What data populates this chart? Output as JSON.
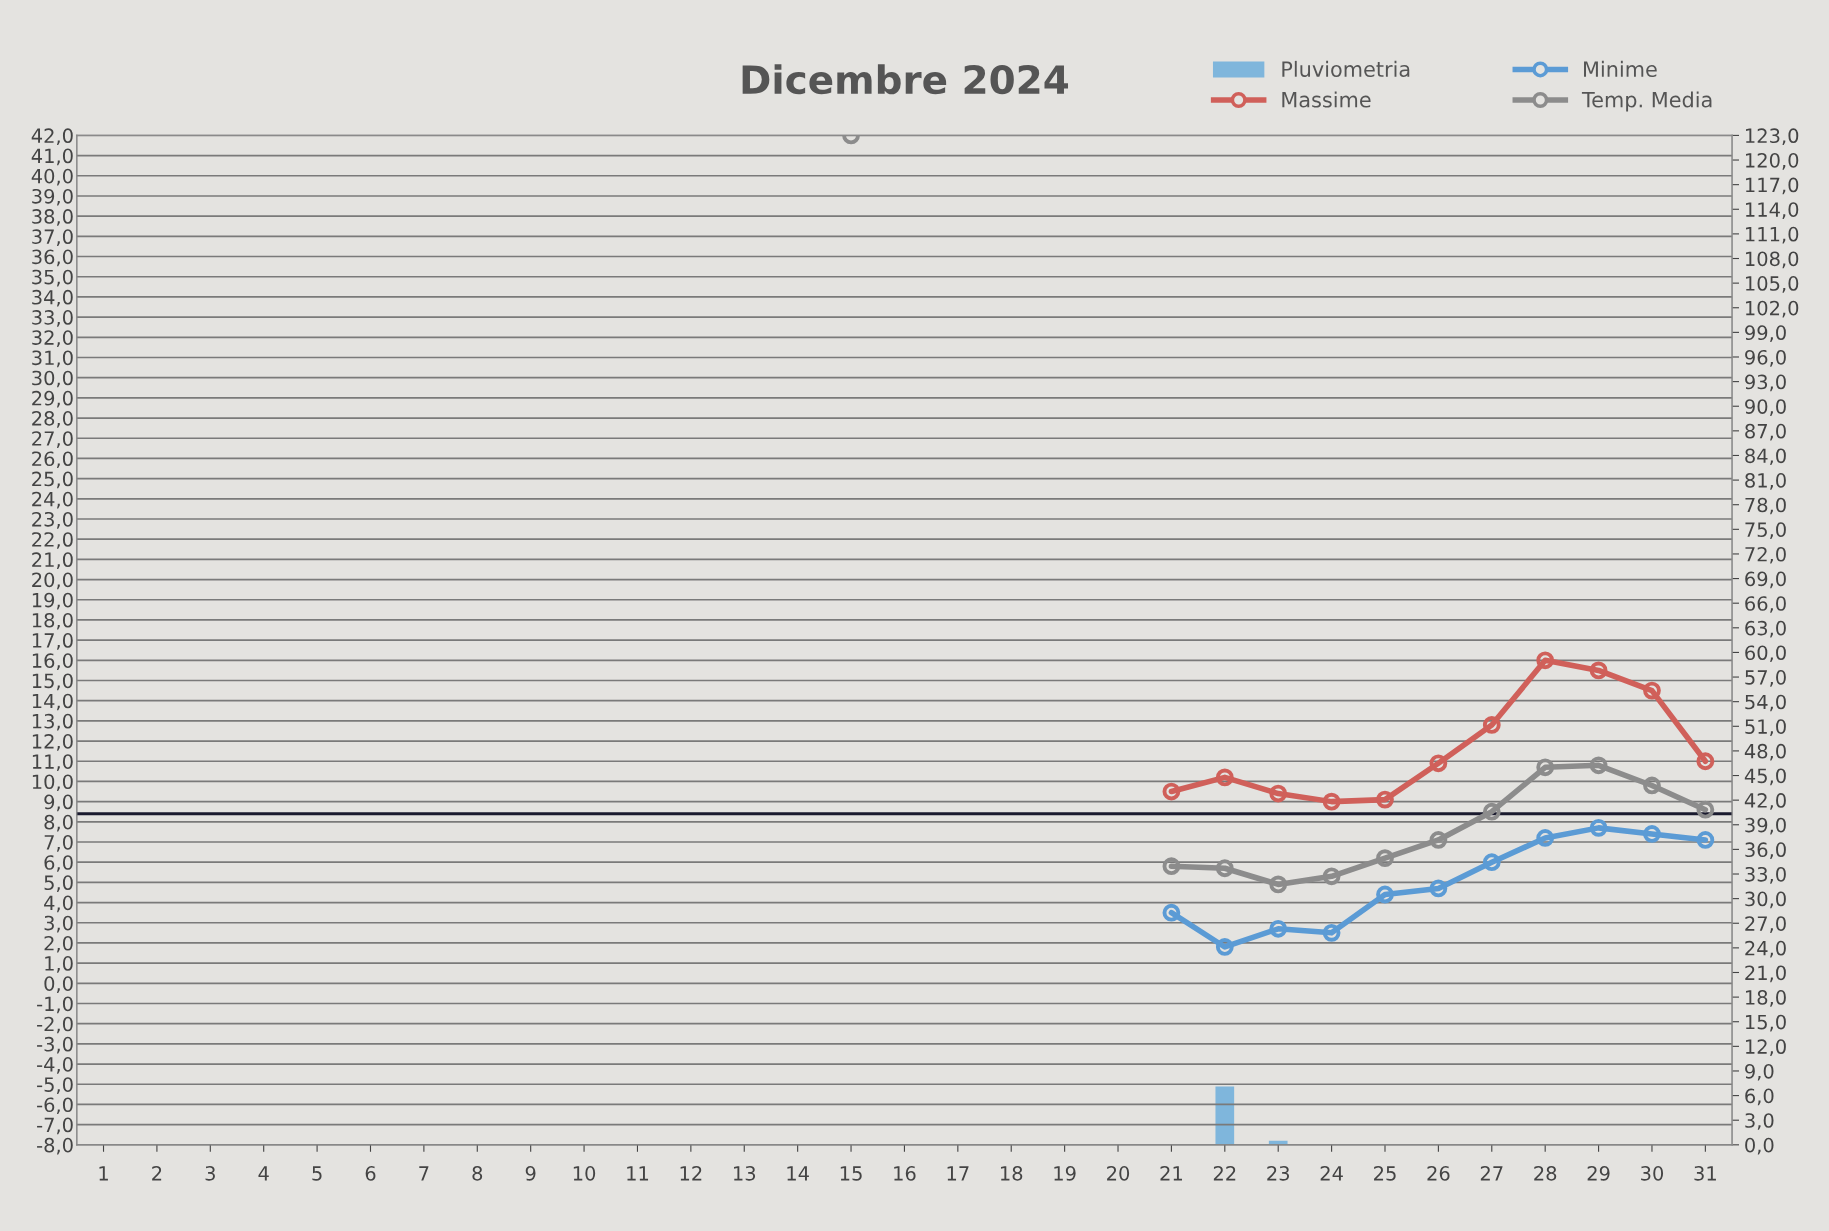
{
  "chart_data": {
    "type": "line",
    "title": "Dicembre 2024",
    "categories": [
      "1",
      "2",
      "3",
      "4",
      "5",
      "6",
      "7",
      "8",
      "9",
      "10",
      "11",
      "12",
      "13",
      "14",
      "15",
      "16",
      "17",
      "18",
      "19",
      "20",
      "21",
      "22",
      "23",
      "24",
      "25",
      "26",
      "27",
      "28",
      "29",
      "30",
      "31"
    ],
    "series": [
      {
        "name": "Pluviometria",
        "type": "bar",
        "axis": "y2",
        "color": "#7fb6dc",
        "values": [
          null,
          null,
          null,
          null,
          null,
          null,
          null,
          null,
          null,
          null,
          null,
          null,
          null,
          null,
          null,
          null,
          null,
          null,
          null,
          null,
          null,
          7.1,
          0.5,
          null,
          null,
          null,
          null,
          null,
          null,
          null,
          null
        ]
      },
      {
        "name": "Massime",
        "color": "#d0605a",
        "values": [
          null,
          null,
          null,
          null,
          null,
          null,
          null,
          null,
          null,
          null,
          null,
          null,
          null,
          null,
          null,
          null,
          null,
          null,
          null,
          null,
          9.5,
          10.2,
          9.4,
          9.0,
          9.1,
          10.9,
          12.8,
          16.0,
          15.5,
          14.5,
          11.0
        ]
      },
      {
        "name": "Minime",
        "color": "#5b9bd5",
        "values": [
          null,
          null,
          null,
          null,
          null,
          null,
          null,
          null,
          null,
          null,
          null,
          null,
          null,
          null,
          null,
          null,
          null,
          null,
          null,
          null,
          3.5,
          1.8,
          2.7,
          2.5,
          4.4,
          4.7,
          6.0,
          7.2,
          7.7,
          7.4,
          7.1
        ]
      },
      {
        "name": "Temp. Media",
        "color": "#8c8c8c",
        "values": [
          null,
          null,
          null,
          null,
          null,
          null,
          null,
          null,
          null,
          null,
          null,
          null,
          null,
          null,
          42.0,
          null,
          null,
          null,
          null,
          null,
          5.8,
          5.7,
          4.9,
          5.3,
          6.2,
          7.1,
          8.5,
          10.7,
          10.8,
          9.8,
          8.6
        ]
      }
    ],
    "ylim": [
      -8,
      42
    ],
    "yticks": [
      {
        "value": -8,
        "label": "-8,0"
      },
      {
        "value": -7,
        "label": "-7,0"
      },
      {
        "value": -6,
        "label": "-6,0"
      },
      {
        "value": -5,
        "label": "-5,0"
      },
      {
        "value": -4,
        "label": "-4,0"
      },
      {
        "value": -3,
        "label": "-3,0"
      },
      {
        "value": -2,
        "label": "-2,0"
      },
      {
        "value": -1,
        "label": "-1,0"
      },
      {
        "value": 0,
        "label": "0,0"
      },
      {
        "value": 1,
        "label": "1,0"
      },
      {
        "value": 2,
        "label": "2,0"
      },
      {
        "value": 3,
        "label": "3,0"
      },
      {
        "value": 4,
        "label": "4,0"
      },
      {
        "value": 5,
        "label": "5,0"
      },
      {
        "value": 6,
        "label": "6,0"
      },
      {
        "value": 7,
        "label": "7,0"
      },
      {
        "value": 8,
        "label": "8,0"
      },
      {
        "value": 9,
        "label": "9,0"
      },
      {
        "value": 10,
        "label": "10,0"
      },
      {
        "value": 11,
        "label": "11,0"
      },
      {
        "value": 12,
        "label": "12,0"
      },
      {
        "value": 13,
        "label": "13,0"
      },
      {
        "value": 14,
        "label": "14,0"
      },
      {
        "value": 15,
        "label": "15,0"
      },
      {
        "value": 16,
        "label": "16,0"
      },
      {
        "value": 17,
        "label": "17,0"
      },
      {
        "value": 18,
        "label": "18,0"
      },
      {
        "value": 19,
        "label": "19,0"
      },
      {
        "value": 20,
        "label": "20,0"
      },
      {
        "value": 21,
        "label": "21,0"
      },
      {
        "value": 22,
        "label": "22,0"
      },
      {
        "value": 23,
        "label": "23,0"
      },
      {
        "value": 24,
        "label": "24,0"
      },
      {
        "value": 25,
        "label": "25,0"
      },
      {
        "value": 26,
        "label": "26,0"
      },
      {
        "value": 27,
        "label": "27,0"
      },
      {
        "value": 28,
        "label": "28,0"
      },
      {
        "value": 29,
        "label": "29,0"
      },
      {
        "value": 30,
        "label": "30,0"
      },
      {
        "value": 31,
        "label": "31,0"
      },
      {
        "value": 32,
        "label": "32,0"
      },
      {
        "value": 33,
        "label": "33,0"
      },
      {
        "value": 34,
        "label": "34,0"
      },
      {
        "value": 35,
        "label": "35,0"
      },
      {
        "value": 36,
        "label": "36,0"
      },
      {
        "value": 37,
        "label": "37,0"
      },
      {
        "value": 38,
        "label": "38,0"
      },
      {
        "value": 39,
        "label": "39,0"
      },
      {
        "value": 40,
        "label": "40,0"
      },
      {
        "value": 41,
        "label": "41,0"
      },
      {
        "value": 42,
        "label": "42,0"
      }
    ],
    "y2lim": [
      0,
      123
    ],
    "y2ticks": [
      {
        "value": 0,
        "label": "0,0"
      },
      {
        "value": 3,
        "label": "3,0"
      },
      {
        "value": 6,
        "label": "6,0"
      },
      {
        "value": 9,
        "label": "9,0"
      },
      {
        "value": 12,
        "label": "12,0"
      },
      {
        "value": 15,
        "label": "15,0"
      },
      {
        "value": 18,
        "label": "18,0"
      },
      {
        "value": 21,
        "label": "21,0"
      },
      {
        "value": 24,
        "label": "24,0"
      },
      {
        "value": 27,
        "label": "27,0"
      },
      {
        "value": 30,
        "label": "30,0"
      },
      {
        "value": 33,
        "label": "33,0"
      },
      {
        "value": 36,
        "label": "36,0"
      },
      {
        "value": 39,
        "label": "39,0"
      },
      {
        "value": 42,
        "label": "42,0"
      },
      {
        "value": 45,
        "label": "45,0"
      },
      {
        "value": 48,
        "label": "48,0"
      },
      {
        "value": 51,
        "label": "51,0"
      },
      {
        "value": 54,
        "label": "54,0"
      },
      {
        "value": 57,
        "label": "57,0"
      },
      {
        "value": 60,
        "label": "60,0"
      },
      {
        "value": 63,
        "label": "63,0"
      },
      {
        "value": 66,
        "label": "66,0"
      },
      {
        "value": 69,
        "label": "69,0"
      },
      {
        "value": 72,
        "label": "72,0"
      },
      {
        "value": 75,
        "label": "75,0"
      },
      {
        "value": 78,
        "label": "78,0"
      },
      {
        "value": 81,
        "label": "81,0"
      },
      {
        "value": 84,
        "label": "84,0"
      },
      {
        "value": 87,
        "label": "87,0"
      },
      {
        "value": 90,
        "label": "90,0"
      },
      {
        "value": 93,
        "label": "93,0"
      },
      {
        "value": 96,
        "label": "96,0"
      },
      {
        "value": 99,
        "label": "99,0"
      },
      {
        "value": 102,
        "label": "102,0"
      },
      {
        "value": 105,
        "label": "105,0"
      },
      {
        "value": 108,
        "label": "108,0"
      },
      {
        "value": 111,
        "label": "111,0"
      },
      {
        "value": 114,
        "label": "114,0"
      },
      {
        "value": 117,
        "label": "117,0"
      },
      {
        "value": 120,
        "label": "120,0"
      },
      {
        "value": 123,
        "label": "123,0"
      }
    ],
    "ref_lines": [
      {
        "axis": "y",
        "value": 8.4,
        "color": "#1a1a2e"
      }
    ],
    "grid": "y",
    "legend": "top right",
    "marker": "circle",
    "line_style": "solid"
  }
}
